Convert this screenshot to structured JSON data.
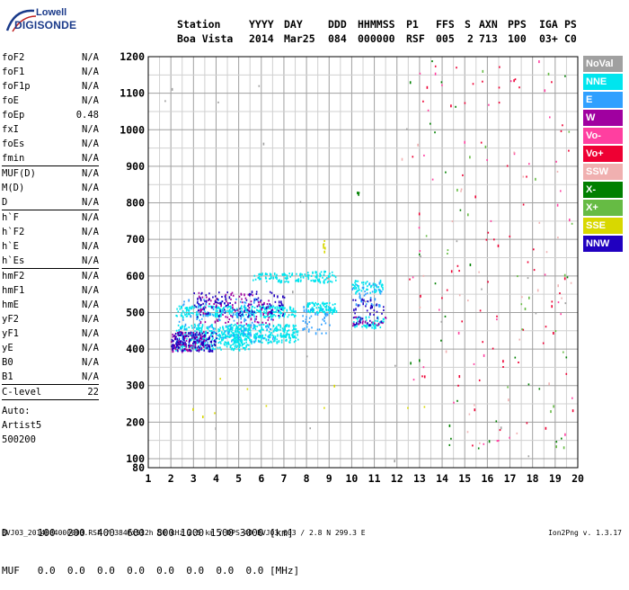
{
  "logo": {
    "line1": "Lowell",
    "line2": "DIGISONDE",
    "color": "#1a3a8a"
  },
  "header": {
    "row1": [
      "Station",
      "YYYY",
      "DAY",
      "DDD",
      "HHMMSS",
      "P1",
      "FFS",
      "S",
      "AXN",
      "PPS",
      "IGA",
      "PS"
    ],
    "row2": [
      "Boa Vista",
      "2014",
      "Mar25",
      "084",
      "000000",
      "RSF",
      "005",
      "2",
      "713",
      "100",
      "03+",
      "C0"
    ]
  },
  "params_group1": [
    {
      "name": "foF2",
      "value": "N/A"
    },
    {
      "name": "foF1",
      "value": "N/A"
    },
    {
      "name": "foF1p",
      "value": "N/A"
    },
    {
      "name": "foE",
      "value": "N/A"
    },
    {
      "name": "foEp",
      "value": "0.48"
    },
    {
      "name": "fxI",
      "value": "N/A"
    },
    {
      "name": "foEs",
      "value": "N/A"
    },
    {
      "name": "fmin",
      "value": "N/A"
    }
  ],
  "params_group2": [
    {
      "name": "MUF(D)",
      "value": "N/A"
    },
    {
      "name": "M(D)",
      "value": "N/A"
    },
    {
      "name": "D",
      "value": "N/A"
    }
  ],
  "params_group3": [
    {
      "name": "h`F",
      "value": "N/A"
    },
    {
      "name": "h`F2",
      "value": "N/A"
    },
    {
      "name": "h`E",
      "value": "N/A"
    },
    {
      "name": "h`Es",
      "value": "N/A"
    }
  ],
  "params_group4": [
    {
      "name": "hmF2",
      "value": "N/A"
    },
    {
      "name": "hmF1",
      "value": "N/A"
    },
    {
      "name": "hmE",
      "value": "N/A"
    },
    {
      "name": "yF2",
      "value": "N/A"
    },
    {
      "name": "yF1",
      "value": "N/A"
    },
    {
      "name": "yE",
      "value": "N/A"
    },
    {
      "name": "B0",
      "value": "N/A"
    },
    {
      "name": "B1",
      "value": "N/A"
    }
  ],
  "clevel": {
    "name": "C-level",
    "value": "22"
  },
  "auto_lines": [
    "Auto:",
    "Artist5",
    "500200"
  ],
  "legend": [
    {
      "label": "NoVal",
      "color": "#a0a0a0"
    },
    {
      "label": "NNE",
      "color": "#00e5ee"
    },
    {
      "label": "E",
      "color": "#30a0ff"
    },
    {
      "label": "W",
      "color": "#a000a0"
    },
    {
      "label": "Vo-",
      "color": "#ff3fa0"
    },
    {
      "label": "Vo+",
      "color": "#ee0033"
    },
    {
      "label": "SSW",
      "color": "#f0b0b0"
    },
    {
      "label": "X-",
      "color": "#008000"
    },
    {
      "label": "X+",
      "color": "#66bb44"
    },
    {
      "label": "SSE",
      "color": "#d8d800"
    },
    {
      "label": "NNW",
      "color": "#2000c0"
    }
  ],
  "dtable": {
    "row1": "D     100  200  400  600  800 1000 1500 3000 [km]",
    "row2": "MUF   0.0  0.0  0.0  0.0  0.0  0.0  0.0  0.0 [MHz]"
  },
  "footer": "BVJ03_2014084000000.RSF / 384fx512h 50 kHz 2.5 km / DPS-4D BVJ03 003 / 2.8 N 299.3 E",
  "version": "Ion2Png v. 1.3.17",
  "chart_data": {
    "type": "scatter",
    "title": "",
    "xlabel": "",
    "ylabel": "",
    "xlim": [
      1,
      20
    ],
    "ylim": [
      80,
      1200
    ],
    "xticks": [
      1,
      2,
      3,
      4,
      5,
      6,
      7,
      8,
      9,
      10,
      11,
      12,
      13,
      14,
      15,
      16,
      17,
      18,
      19,
      20
    ],
    "yticks": [
      80,
      100,
      200,
      300,
      400,
      500,
      600,
      700,
      800,
      900,
      1000,
      1100,
      1200
    ],
    "grid": true,
    "legend_position": "right",
    "series": [
      {
        "name": "NNE",
        "color": "#00e5ee",
        "clusters": [
          {
            "x": [
              2.2,
              5.5
            ],
            "y": [
              400,
              470
            ],
            "n": 340
          },
          {
            "x": [
              4.5,
              7.6
            ],
            "y": [
              420,
              470
            ],
            "n": 260
          },
          {
            "x": [
              2.2,
              7.5
            ],
            "y": [
              490,
              520
            ],
            "n": 260
          },
          {
            "x": [
              5.6,
              7.8
            ],
            "y": [
              585,
              610
            ],
            "n": 70
          },
          {
            "x": [
              7.8,
              9.3
            ],
            "y": [
              585,
              615
            ],
            "n": 60
          },
          {
            "x": [
              8.0,
              9.3
            ],
            "y": [
              500,
              530
            ],
            "n": 90
          },
          {
            "x": [
              10.0,
              11.4
            ],
            "y": [
              555,
              590
            ],
            "n": 60
          },
          {
            "x": [
              10.0,
              11.4
            ],
            "y": [
              460,
              490
            ],
            "n": 50
          }
        ]
      },
      {
        "name": "E",
        "color": "#30a0ff",
        "clusters": [
          {
            "x": [
              2.3,
              6.5
            ],
            "y": [
              420,
              540
            ],
            "n": 140
          },
          {
            "x": [
              10.0,
              11.3
            ],
            "y": [
              520,
              590
            ],
            "n": 40
          },
          {
            "x": [
              7.8,
              9.0
            ],
            "y": [
              440,
              520
            ],
            "n": 40
          }
        ]
      },
      {
        "name": "W",
        "color": "#a000a0",
        "clusters": [
          {
            "x": [
              2.0,
              3.5
            ],
            "y": [
              395,
              450
            ],
            "n": 90
          },
          {
            "x": [
              3.2,
              6.5
            ],
            "y": [
              470,
              560
            ],
            "n": 90
          },
          {
            "x": [
              10.0,
              11.5
            ],
            "y": [
              465,
              490
            ],
            "n": 20
          }
        ]
      },
      {
        "name": "NNW",
        "color": "#2000c0",
        "clusters": [
          {
            "x": [
              2.0,
              4.0
            ],
            "y": [
              395,
              450
            ],
            "n": 120
          },
          {
            "x": [
              3.0,
              7.0
            ],
            "y": [
              490,
              560
            ],
            "n": 110
          },
          {
            "x": [
              10.0,
              11.4
            ],
            "y": [
              460,
              540
            ],
            "n": 40
          }
        ]
      },
      {
        "name": "Vo+",
        "color": "#ee0033",
        "clusters": [
          {
            "x": [
              12.5,
              19.8
            ],
            "y": [
              120,
              1200
            ],
            "n": 70
          }
        ]
      },
      {
        "name": "Vo-",
        "color": "#ff3fa0",
        "clusters": [
          {
            "x": [
              12.5,
              19.8
            ],
            "y": [
              120,
              1200
            ],
            "n": 40
          }
        ]
      },
      {
        "name": "X-",
        "color": "#008000",
        "clusters": [
          {
            "x": [
              12.5,
              19.8
            ],
            "y": [
              120,
              1200
            ],
            "n": 30
          },
          {
            "x": [
              10.2,
              10.3
            ],
            "y": [
              825,
              835
            ],
            "n": 3
          }
        ]
      },
      {
        "name": "X+",
        "color": "#66bb44",
        "clusters": [
          {
            "x": [
              12.8,
              19.8
            ],
            "y": [
              120,
              1200
            ],
            "n": 25
          }
        ]
      },
      {
        "name": "SSW",
        "color": "#f0b0b0",
        "clusters": [
          {
            "x": [
              12.0,
              19.8
            ],
            "y": [
              120,
              1000
            ],
            "n": 30
          }
        ]
      },
      {
        "name": "SSE",
        "color": "#d8d800",
        "clusters": [
          {
            "x": [
              8.7,
              8.8
            ],
            "y": [
              660,
              700
            ],
            "n": 6
          },
          {
            "x": [
              2.0,
              15.5
            ],
            "y": [
              200,
              330
            ],
            "n": 10
          }
        ]
      },
      {
        "name": "NoVal",
        "color": "#a0a0a0",
        "clusters": [
          {
            "x": [
              1.2,
              19.8
            ],
            "y": [
              90,
              1200
            ],
            "n": 25
          }
        ]
      }
    ]
  }
}
